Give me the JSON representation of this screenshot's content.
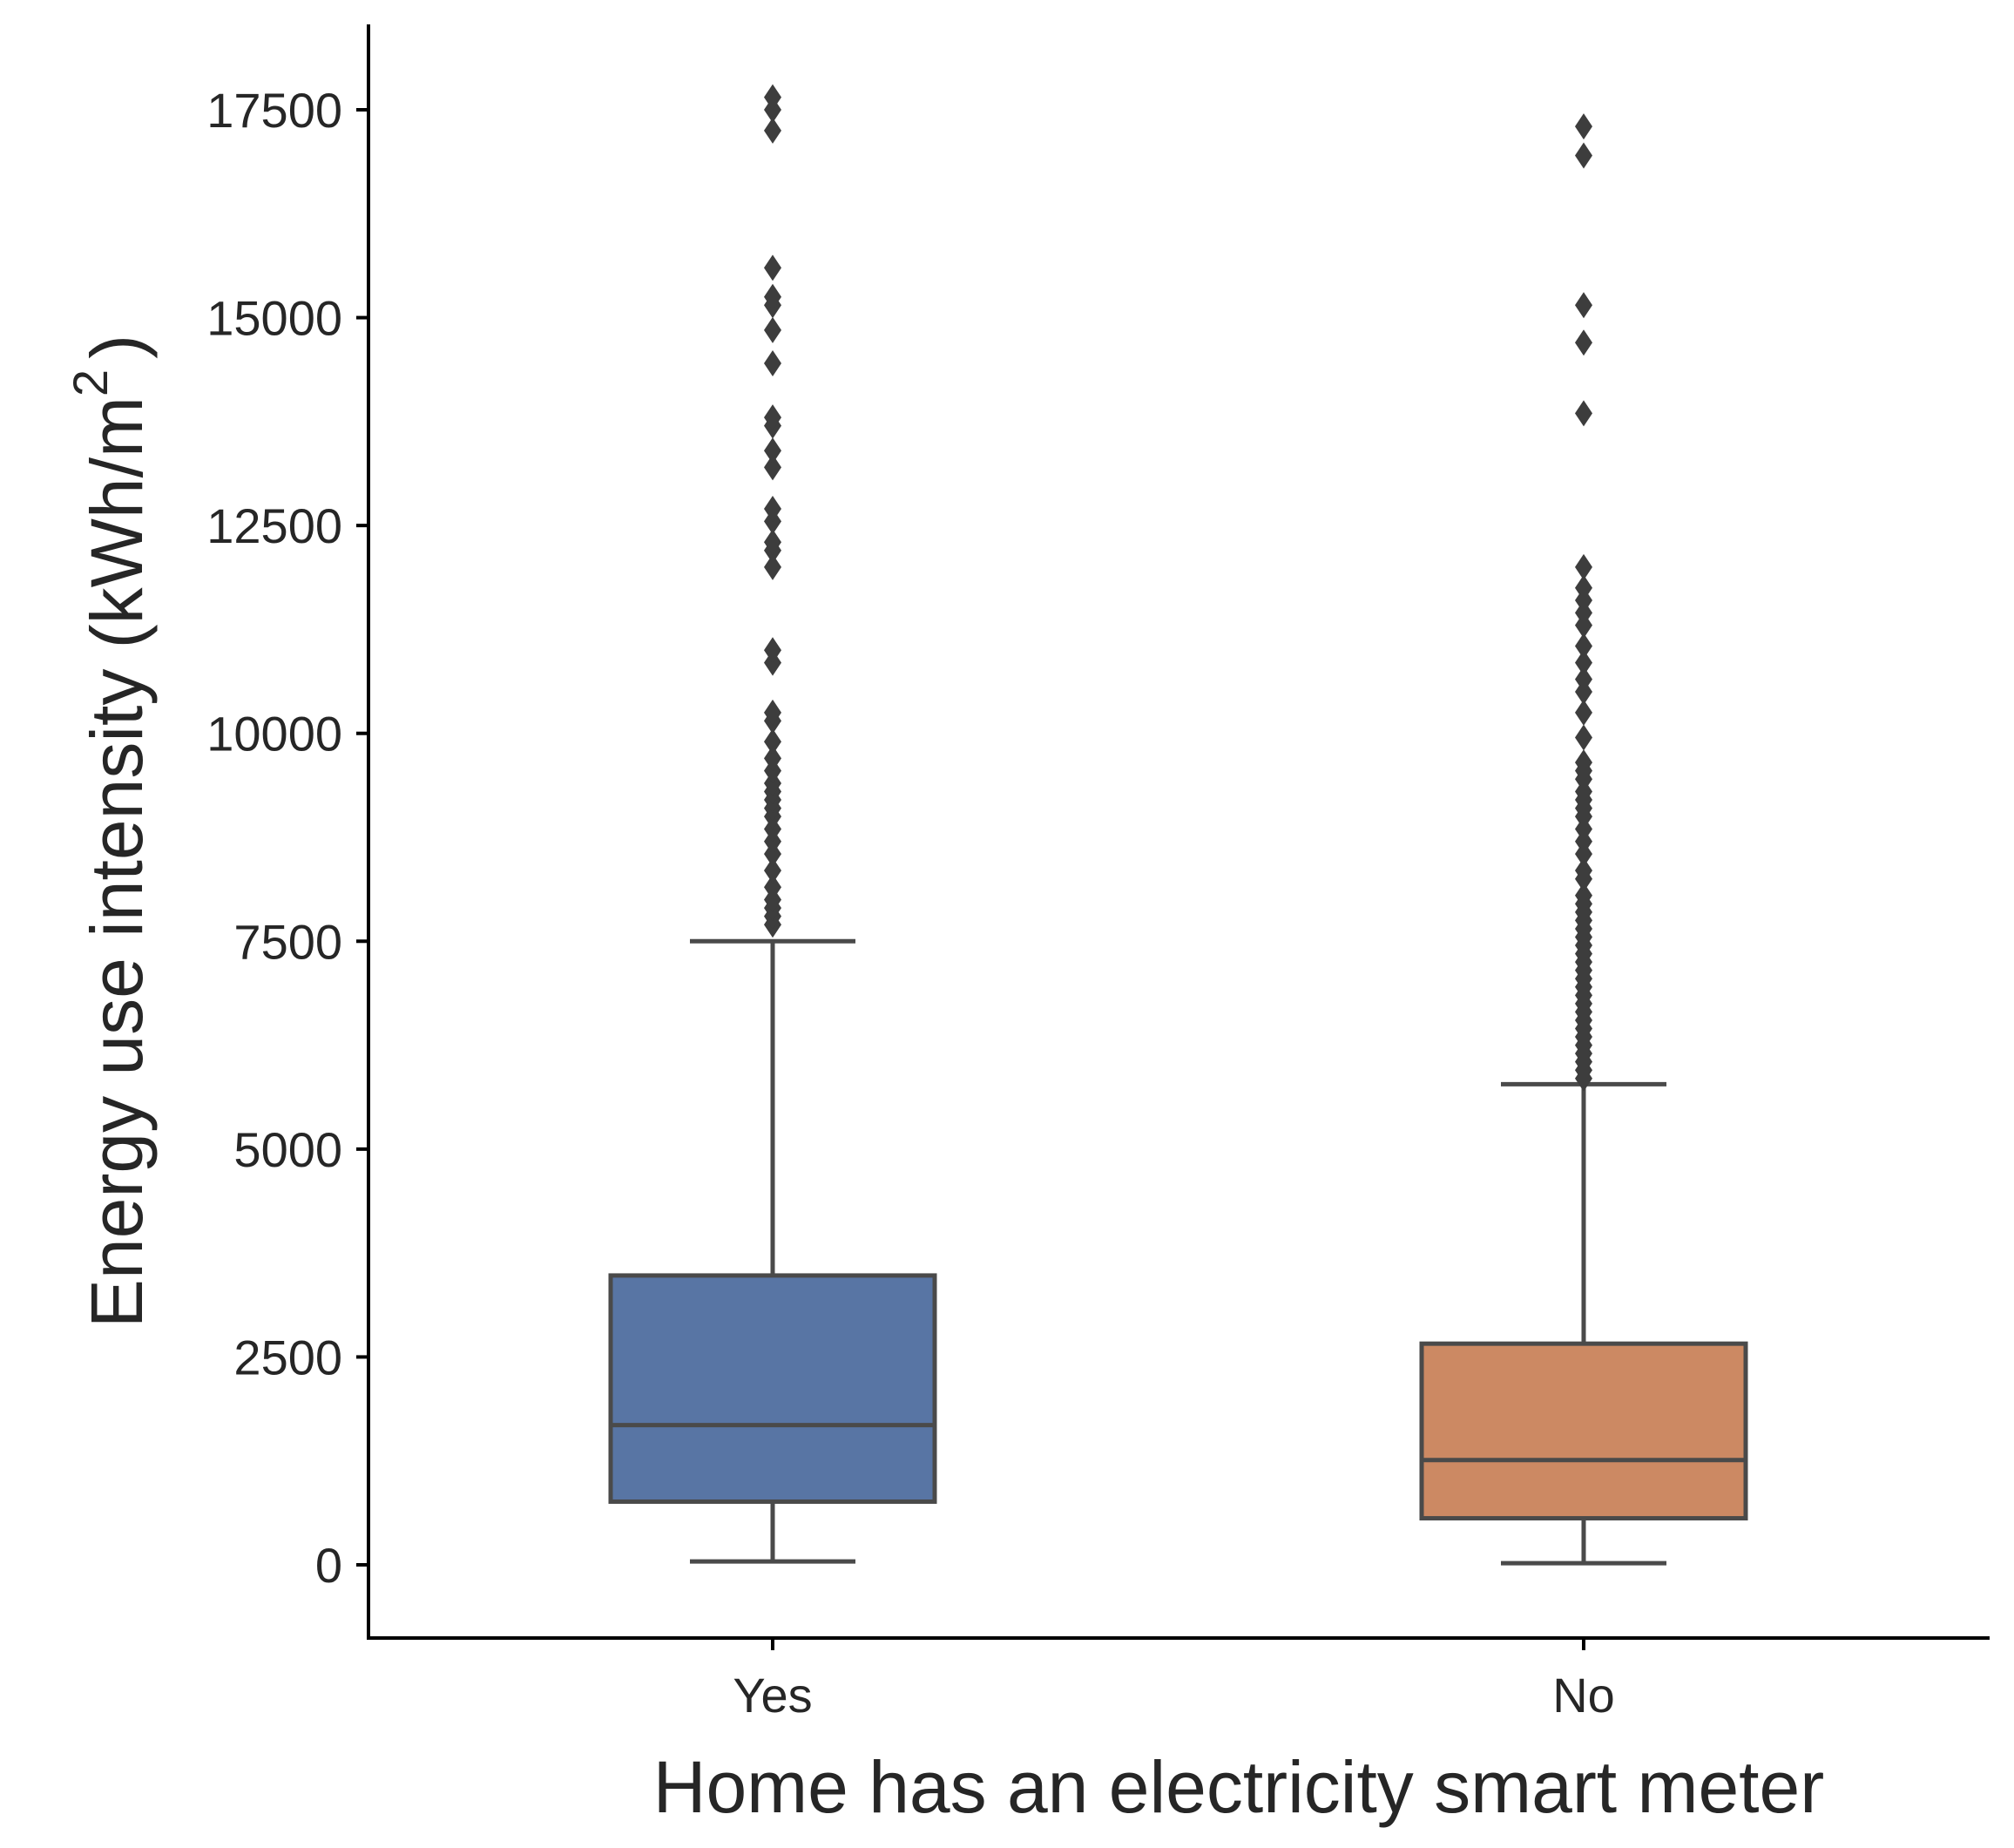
{
  "chart_data": {
    "type": "box",
    "xlabel": "Home has an electricity smart meter",
    "ylabel": "Energy use intensity (kWh/m",
    "ylabel_superscript": "2",
    "ylabel_close": ")",
    "ylim": [
      -850,
      18500
    ],
    "yticks": [
      0,
      2500,
      5000,
      7500,
      10000,
      12500,
      15000,
      17500
    ],
    "ytick_labels": [
      "0",
      "2500",
      "5000",
      "7500",
      "10000",
      "12500",
      "15000",
      "17500"
    ],
    "grid": false,
    "categories": [
      "Yes",
      "No"
    ],
    "boxes": [
      {
        "category": "Yes",
        "color": "#5875a4",
        "whisker_low": 40,
        "q1": 760,
        "median": 1680,
        "q3": 3480,
        "whisker_high": 7500,
        "outliers": [
          7700,
          7800,
          7900,
          8000,
          8150,
          8350,
          8550,
          8700,
          8850,
          9000,
          9100,
          9200,
          9300,
          9400,
          9550,
          9700,
          9900,
          10150,
          10250,
          10850,
          11000,
          12000,
          12200,
          12300,
          12550,
          12700,
          13200,
          13400,
          13700,
          13800,
          14450,
          14850,
          15150,
          15250,
          15600,
          17250,
          17500,
          17650
        ]
      },
      {
        "category": "No",
        "color": "#cc8963",
        "whisker_low": 20,
        "q1": 560,
        "median": 1260,
        "q3": 2660,
        "whisker_high": 5780,
        "outliers": [
          5850,
          5950,
          6050,
          6150,
          6250,
          6350,
          6450,
          6550,
          6650,
          6750,
          6850,
          6950,
          7050,
          7150,
          7250,
          7350,
          7450,
          7550,
          7650,
          7750,
          7850,
          7950,
          8050,
          8250,
          8350,
          8550,
          8700,
          8850,
          9000,
          9100,
          9200,
          9300,
          9450,
          9550,
          9650,
          9950,
          10250,
          10500,
          10650,
          10850,
          11050,
          11300,
          11450,
          11600,
          11750,
          12000,
          13850,
          14700,
          15150,
          16950,
          17300
        ]
      }
    ]
  }
}
